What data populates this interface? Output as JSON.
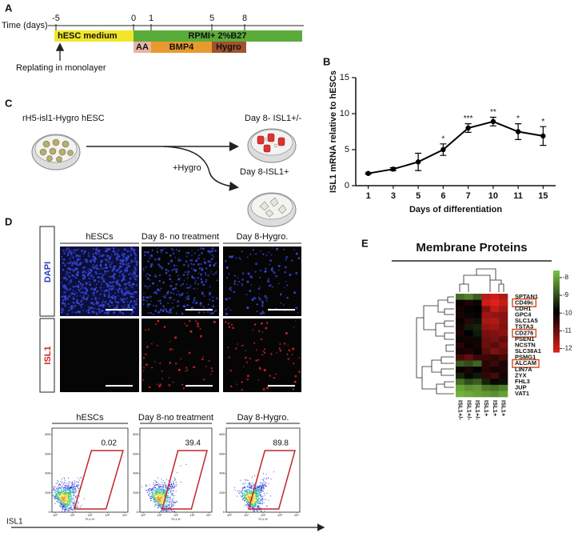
{
  "panel_labels": [
    "A",
    "B",
    "C",
    "D",
    "E"
  ],
  "panel_a": {
    "axis_label": "Time (days)",
    "ticks": [
      "-5",
      "0",
      "1",
      "5",
      "8"
    ],
    "phases": [
      "hESC medium",
      "RPMI+ 2%B27"
    ],
    "factors": [
      "AA",
      "BMP4",
      "Hygro"
    ],
    "note": "Replating in monolayer"
  },
  "panel_c": {
    "cell_line": "rH5-isl1-Hygro hESC",
    "untreated": "Day 8- ISL1+/-",
    "treatment": "+Hygro",
    "treated": "Day 8-ISL1+"
  },
  "panel_d": {
    "image_columns": [
      "hESCs",
      "Day 8- no treatment",
      "Day 8-Hygro."
    ],
    "image_rows": [
      "DAPI",
      "ISL1"
    ],
    "flow_columns": [
      "hESCs",
      "Day 8-no treatment",
      "Day 8-Hygro."
    ],
    "flow_percent": [
      0.02,
      39.4,
      89.8
    ],
    "flow_x_label": "FL1-H",
    "flow_yticks": [
      0,
      200,
      400,
      600,
      800
    ],
    "flow_xticks": [
      {
        "value": 0,
        "label": "10⁰"
      },
      {
        "value": 1,
        "label": "10¹"
      },
      {
        "value": 2,
        "label": "10²"
      },
      {
        "value": 3,
        "label": "10³"
      },
      {
        "value": 4,
        "label": "10⁴"
      }
    ],
    "axis_label": "ISL1"
  },
  "chart_data": [
    {
      "type": "line",
      "y_label": "ISL1 mRNA relative to hESCs",
      "x_label": "Days of differentiation",
      "categories": [
        "1",
        "3",
        "5",
        "6",
        "7",
        "10",
        "11",
        "15"
      ],
      "values": [
        1.7,
        2.3,
        3.3,
        5.0,
        8.0,
        8.9,
        7.5,
        6.9
      ],
      "errors": [
        0.1,
        0.2,
        1.2,
        0.8,
        0.6,
        0.6,
        1.1,
        1.3
      ],
      "significance": [
        null,
        null,
        null,
        "*",
        "***",
        "**",
        "*",
        "*"
      ],
      "ylim": [
        0,
        15
      ],
      "yticks": [
        0,
        5,
        10,
        15
      ],
      "color": "#000000"
    },
    {
      "type": "heatmap",
      "title": "Membrane Proteins",
      "rows": [
        "SPTAN1",
        "CD49c",
        "CDH1",
        "GPC4",
        "SLC1A5",
        "TSTA3",
        "CD276",
        "PSEN1",
        "NCSTN",
        "SLC38A1",
        "PSMG1",
        "ALCAM",
        "LIN7A",
        "ZYX",
        "FHL3",
        "JUP",
        "VAT1"
      ],
      "boxed": [
        false,
        true,
        false,
        false,
        false,
        false,
        true,
        false,
        false,
        false,
        false,
        true,
        false,
        false,
        false,
        false,
        false
      ],
      "columns": [
        "ISL1+/-",
        "ISL1+/-",
        "ISL1+/-",
        "ISL1+",
        "ISL1+",
        "ISL1+"
      ],
      "values": [
        [
          -8.6,
          -8.4,
          -8.8,
          -11.8,
          -12.0,
          -11.7
        ],
        [
          -10.0,
          -10.2,
          -9.8,
          -12.0,
          -12.2,
          -11.9
        ],
        [
          -10.1,
          -10.0,
          -9.9,
          -11.2,
          -11.9,
          -11.6
        ],
        [
          -10.2,
          -9.8,
          -10.0,
          -11.5,
          -11.4,
          -11.3
        ],
        [
          -10.0,
          -10.3,
          -9.7,
          -11.6,
          -11.7,
          -11.3
        ],
        [
          -10.1,
          -9.6,
          -9.5,
          -11.4,
          -11.5,
          -11.2
        ],
        [
          -10.2,
          -9.9,
          -9.6,
          -11.1,
          -11.2,
          -11.3
        ],
        [
          -10.0,
          -10.1,
          -9.8,
          -11.0,
          -11.1,
          -10.9
        ],
        [
          -10.3,
          -10.0,
          -10.1,
          -11.0,
          -10.8,
          -11.1
        ],
        [
          -10.1,
          -10.2,
          -10.0,
          -10.8,
          -11.2,
          -10.9
        ],
        [
          -10.6,
          -10.9,
          -10.5,
          -10.5,
          -10.4,
          -10.6
        ],
        [
          -8.8,
          -9.0,
          -8.7,
          -10.3,
          -10.5,
          -10.2
        ],
        [
          -10.0,
          -10.2,
          -9.9,
          -10.3,
          -10.1,
          -10.2
        ],
        [
          -9.5,
          -9.8,
          -9.6,
          -10.4,
          -10.6,
          -10.1
        ],
        [
          -8.6,
          -9.0,
          -8.8,
          -9.5,
          -9.8,
          -9.7
        ],
        [
          -8.0,
          -8.2,
          -8.1,
          -8.5,
          -8.6,
          -8.4
        ],
        [
          -7.8,
          -7.9,
          -8.0,
          -8.1,
          -8.2,
          -8.0
        ]
      ],
      "zlim": [
        -12.2,
        -7.6
      ],
      "colors": [
        "#e0201b",
        "#000000",
        "#7dc242"
      ],
      "box_color": "#d9502a",
      "colorbar_ticks": [
        -8,
        -9,
        -10,
        -11,
        -12
      ]
    }
  ]
}
